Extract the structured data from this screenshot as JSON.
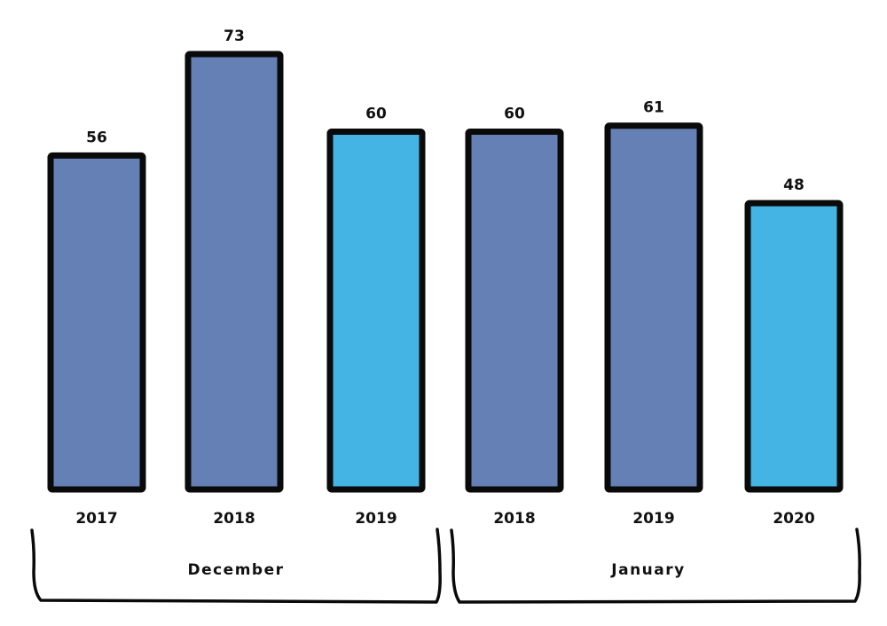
{
  "chart_data": {
    "type": "bar",
    "categories": [
      "2017",
      "2018",
      "2019",
      "2018",
      "2019",
      "2020"
    ],
    "values": [
      56,
      73,
      60,
      60,
      61,
      48
    ],
    "data_labels": [
      "56",
      "73",
      "60",
      "60",
      "61",
      "48"
    ],
    "bar_colors": [
      "#6580b4",
      "#6580b4",
      "#44b4e4",
      "#6580b4",
      "#6580b4",
      "#44b4e4"
    ],
    "groups": [
      {
        "label": "December",
        "categories": [
          "2017",
          "2018",
          "2019"
        ]
      },
      {
        "label": "January",
        "categories": [
          "2018",
          "2019",
          "2020"
        ]
      }
    ],
    "title": "",
    "xlabel": "",
    "ylabel": "",
    "ylim": [
      0,
      73
    ],
    "grid": false,
    "legend": "none",
    "colors": {
      "bar_default": "#6580b4",
      "bar_highlight": "#44b4e4",
      "outline": "#0a0a0a"
    }
  }
}
